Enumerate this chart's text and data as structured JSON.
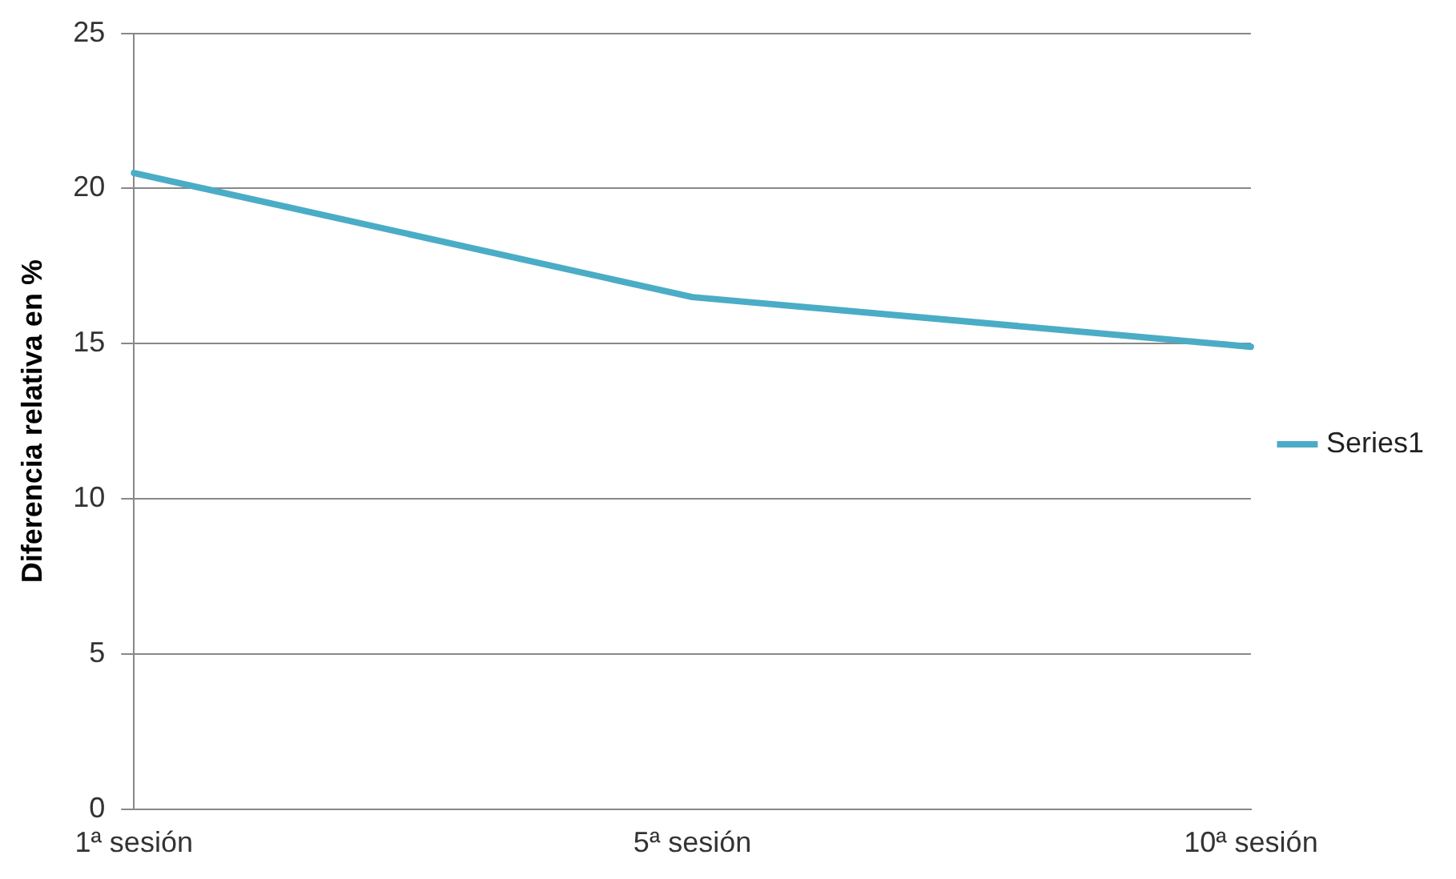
{
  "chart_data": {
    "type": "line",
    "ylabel": "Diferencia relativa en %",
    "categories": [
      "1ª sesión",
      "5ª sesión",
      "10ª sesión"
    ],
    "series": [
      {
        "name": "Series1",
        "color": "#4bacc6",
        "values": [
          20.5,
          16.5,
          14.9
        ]
      }
    ],
    "ylim": [
      0,
      25
    ],
    "yticks": [
      0,
      5,
      10,
      15,
      20,
      25
    ],
    "grid": "y",
    "legend": "right",
    "marker": "none",
    "line_style": "solid"
  }
}
